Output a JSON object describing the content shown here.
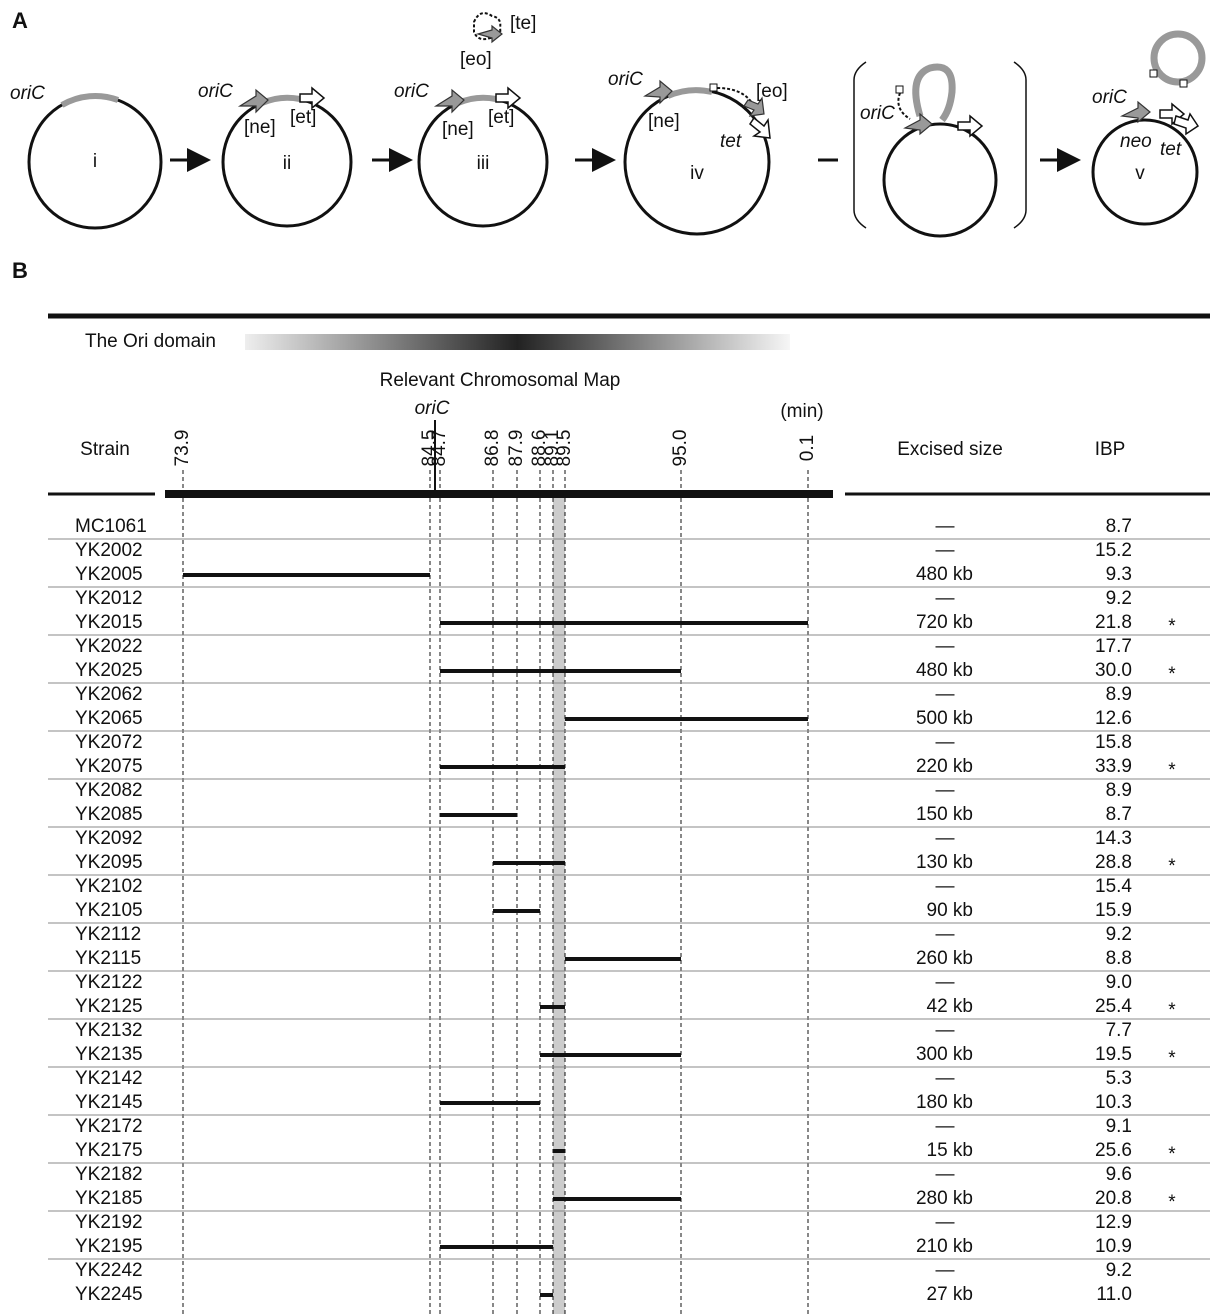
{
  "panel_a": {
    "label": "A",
    "circles": [
      {
        "numeral": "i",
        "labels": [
          "oriC"
        ]
      },
      {
        "numeral": "ii",
        "labels": [
          "oriC",
          "[ne]",
          "[et]"
        ]
      },
      {
        "numeral": "iii",
        "labels": [
          "oriC",
          "[ne]",
          "[et]",
          "[eo]",
          "[te]"
        ]
      },
      {
        "numeral": "iv",
        "labels": [
          "oriC",
          "[ne]",
          "[eo]",
          "tet"
        ]
      },
      {
        "labels": [
          "oriC"
        ]
      },
      {
        "numeral": "v",
        "labels": [
          "oriC",
          "neo",
          "tet"
        ]
      }
    ]
  },
  "panel_b": {
    "label": "B",
    "domain_label": "The Ori domain",
    "map_title": "Relevant Chromosomal Map",
    "oric_label": "oriC",
    "unit_label": "(min)",
    "columns": {
      "strain": "Strain",
      "excised": "Excised size",
      "ibp": "IBP"
    },
    "map_ticks": [
      73.9,
      84.5,
      84.7,
      86.8,
      87.9,
      88.6,
      89.1,
      89.5,
      {
        "value": 95,
        "label": "95.0"
      },
      0.1
    ],
    "rows": [
      {
        "strain": "MC1061",
        "excised": "—",
        "ibp": "8.7"
      },
      {
        "strain": "YK2002",
        "excised": "—",
        "ibp": "15.2"
      },
      {
        "strain": "YK2005",
        "excised": "480 kb",
        "ibp": "9.3",
        "deletion": [
          73.9,
          84.5
        ]
      },
      {
        "strain": "YK2012",
        "excised": "—",
        "ibp": "9.2"
      },
      {
        "strain": "YK2015",
        "excised": "720 kb",
        "ibp": "21.8",
        "mark": "*",
        "deletion": [
          84.7,
          0.1
        ]
      },
      {
        "strain": "YK2022",
        "excised": "—",
        "ibp": "17.7"
      },
      {
        "strain": "YK2025",
        "excised": "480 kb",
        "ibp": "30.0",
        "mark": "*",
        "deletion": [
          84.7,
          95
        ]
      },
      {
        "strain": "YK2062",
        "excised": "—",
        "ibp": "8.9"
      },
      {
        "strain": "YK2065",
        "excised": "500 kb",
        "ibp": "12.6",
        "deletion": [
          89.5,
          0.1
        ]
      },
      {
        "strain": "YK2072",
        "excised": "—",
        "ibp": "15.8"
      },
      {
        "strain": "YK2075",
        "excised": "220 kb",
        "ibp": "33.9",
        "mark": "*",
        "deletion": [
          84.7,
          89.5
        ]
      },
      {
        "strain": "YK2082",
        "excised": "—",
        "ibp": "8.9"
      },
      {
        "strain": "YK2085",
        "excised": "150 kb",
        "ibp": "8.7",
        "deletion": [
          84.7,
          87.9
        ]
      },
      {
        "strain": "YK2092",
        "excised": "—",
        "ibp": "14.3"
      },
      {
        "strain": "YK2095",
        "excised": "130 kb",
        "ibp": "28.8",
        "mark": "*",
        "deletion": [
          86.8,
          89.5
        ]
      },
      {
        "strain": "YK2102",
        "excised": "—",
        "ibp": "15.4"
      },
      {
        "strain": "YK2105",
        "excised": "90 kb",
        "ibp": "15.9",
        "deletion": [
          86.8,
          88.6
        ]
      },
      {
        "strain": "YK2112",
        "excised": "—",
        "ibp": "9.2"
      },
      {
        "strain": "YK2115",
        "excised": "260 kb",
        "ibp": "8.8",
        "deletion": [
          89.5,
          95
        ]
      },
      {
        "strain": "YK2122",
        "excised": "—",
        "ibp": "9.0"
      },
      {
        "strain": "YK2125",
        "excised": "42 kb",
        "ibp": "25.4",
        "mark": "*",
        "deletion": [
          88.6,
          89.5
        ]
      },
      {
        "strain": "YK2132",
        "excised": "—",
        "ibp": "7.7"
      },
      {
        "strain": "YK2135",
        "excised": "300 kb",
        "ibp": "19.5",
        "mark": "*",
        "deletion": [
          88.6,
          95
        ]
      },
      {
        "strain": "YK2142",
        "excised": "—",
        "ibp": "5.3"
      },
      {
        "strain": "YK2145",
        "excised": "180 kb",
        "ibp": "10.3",
        "deletion": [
          84.7,
          88.6
        ]
      },
      {
        "strain": "YK2172",
        "excised": "—",
        "ibp": "9.1"
      },
      {
        "strain": "YK2175",
        "excised": "15 kb",
        "ibp": "25.6",
        "mark": "*",
        "deletion": [
          89.1,
          89.5
        ]
      },
      {
        "strain": "YK2182",
        "excised": "—",
        "ibp": "9.6"
      },
      {
        "strain": "YK2185",
        "excised": "280 kb",
        "ibp": "20.8",
        "mark": "*",
        "deletion": [
          89.1,
          95
        ]
      },
      {
        "strain": "YK2192",
        "excised": "—",
        "ibp": "12.9"
      },
      {
        "strain": "YK2195",
        "excised": "210 kb",
        "ibp": "10.9",
        "deletion": [
          84.7,
          89.1
        ]
      },
      {
        "strain": "YK2242",
        "excised": "—",
        "ibp": "9.2"
      },
      {
        "strain": "YK2245",
        "excised": "27 kb",
        "ibp": "11.0",
        "deletion": [
          88.6,
          89.1
        ]
      }
    ]
  }
}
